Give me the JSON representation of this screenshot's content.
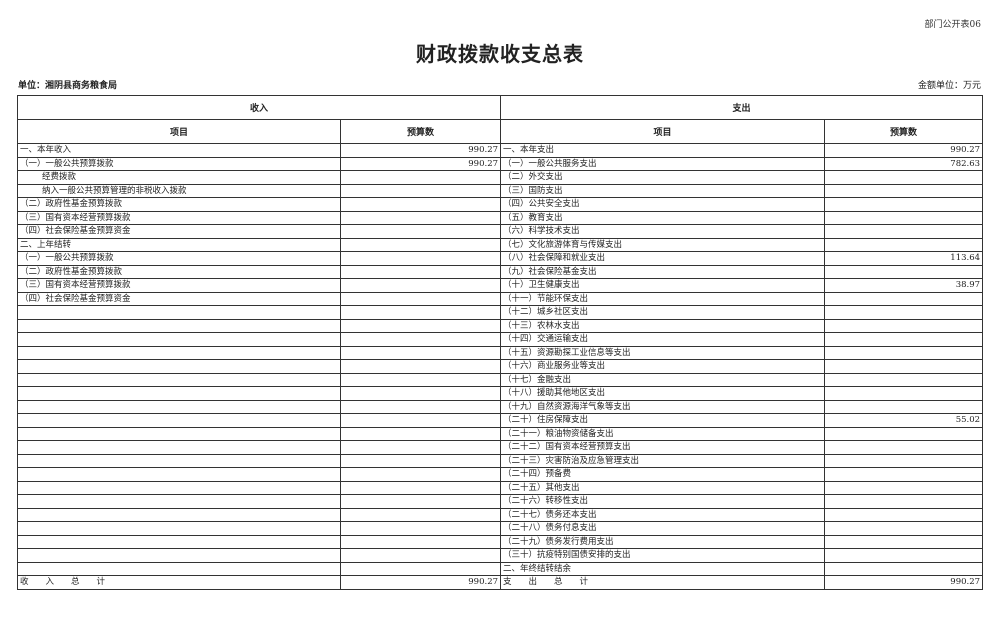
{
  "form_no": "部门公开表06",
  "title": "财政拨款收支总表",
  "unit": "单位：湘阴县商务粮食局",
  "money_unit": "金额单位：万元",
  "headers": {
    "income": "收入",
    "expense": "支出",
    "item": "项目",
    "budget": "预算数"
  },
  "income": [
    {
      "label": "一、本年收入",
      "value": "990.27"
    },
    {
      "label": "（一）一般公共预算拨款",
      "value": "990.27"
    },
    {
      "label": "经费拨款",
      "value": "",
      "indent": true
    },
    {
      "label": "纳入一般公共预算管理的非税收入拨款",
      "value": "",
      "indent": true
    },
    {
      "label": "（二）政府性基金预算拨款",
      "value": ""
    },
    {
      "label": "（三）国有资本经营预算拨款",
      "value": ""
    },
    {
      "label": "（四）社会保险基金预算资金",
      "value": ""
    },
    {
      "label": "二、上年结转",
      "value": ""
    },
    {
      "label": "（一）一般公共预算拨款",
      "value": ""
    },
    {
      "label": "（二）政府性基金预算拨款",
      "value": ""
    },
    {
      "label": "（三）国有资本经营预算拨款",
      "value": ""
    },
    {
      "label": "（四）社会保险基金预算资金",
      "value": ""
    }
  ],
  "expense": [
    {
      "label": "一、本年支出",
      "value": "990.27"
    },
    {
      "label": "（一）一般公共服务支出",
      "value": "782.63"
    },
    {
      "label": "（二）外交支出",
      "value": ""
    },
    {
      "label": "（三）国防支出",
      "value": ""
    },
    {
      "label": "（四）公共安全支出",
      "value": ""
    },
    {
      "label": "（五）教育支出",
      "value": ""
    },
    {
      "label": "（六）科学技术支出",
      "value": ""
    },
    {
      "label": "（七）文化旅游体育与传媒支出",
      "value": ""
    },
    {
      "label": "（八）社会保障和就业支出",
      "value": "113.64"
    },
    {
      "label": "（九）社会保险基金支出",
      "value": ""
    },
    {
      "label": "（十）卫生健康支出",
      "value": "38.97"
    },
    {
      "label": "（十一）节能环保支出",
      "value": ""
    },
    {
      "label": "（十二）城乡社区支出",
      "value": ""
    },
    {
      "label": "（十三）农林水支出",
      "value": ""
    },
    {
      "label": "（十四）交通运输支出",
      "value": ""
    },
    {
      "label": "（十五）资源勘探工业信息等支出",
      "value": ""
    },
    {
      "label": "（十六）商业服务业等支出",
      "value": ""
    },
    {
      "label": "（十七）金融支出",
      "value": ""
    },
    {
      "label": "（十八）援助其他地区支出",
      "value": ""
    },
    {
      "label": "（十九）自然资源海洋气象等支出",
      "value": ""
    },
    {
      "label": "（二十）住房保障支出",
      "value": "55.02"
    },
    {
      "label": "（二十一）粮油物资储备支出",
      "value": ""
    },
    {
      "label": "（二十二）国有资本经营预算支出",
      "value": ""
    },
    {
      "label": "（二十三）灾害防治及应急管理支出",
      "value": ""
    },
    {
      "label": "（二十四）预备费",
      "value": ""
    },
    {
      "label": "（二十五）其他支出",
      "value": ""
    },
    {
      "label": "（二十六）转移性支出",
      "value": ""
    },
    {
      "label": "（二十七）债务还本支出",
      "value": ""
    },
    {
      "label": "（二十八）债务付息支出",
      "value": ""
    },
    {
      "label": "（二十九）债务发行费用支出",
      "value": ""
    },
    {
      "label": "（三十）抗疫特别国债安排的支出",
      "value": ""
    },
    {
      "label": "二、年终结转结余",
      "value": ""
    }
  ],
  "totals": {
    "income_label": "收　　入　　总　　计",
    "income_value": "990.27",
    "expense_label": "支　　出　　总　　计",
    "expense_value": "990.27"
  }
}
